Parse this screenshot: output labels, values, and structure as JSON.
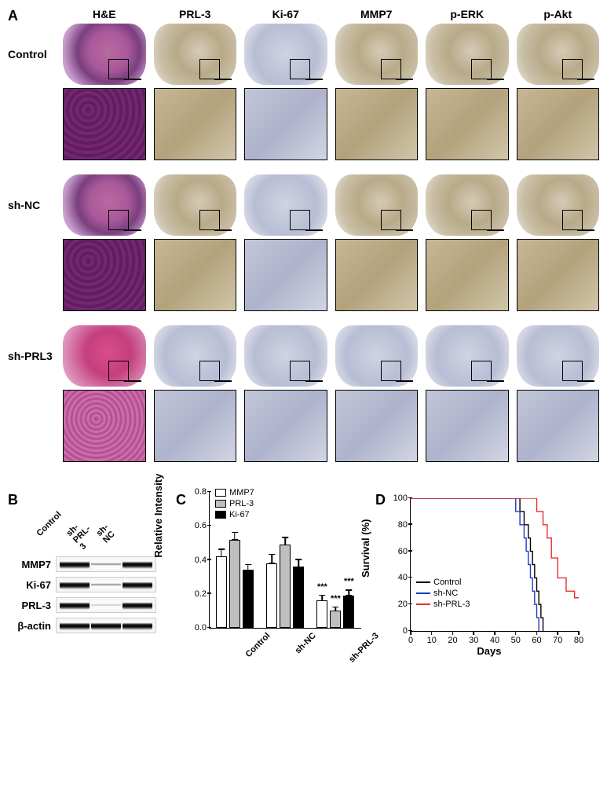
{
  "panelA": {
    "label": "A",
    "columns": [
      "H&E",
      "PRL-3",
      "Ki-67",
      "MMP7",
      "p-ERK",
      "p-Akt"
    ],
    "rows": [
      "Control",
      "sh-NC",
      "sh-PRL3"
    ],
    "brain_variants": {
      "Control": [
        "he",
        "brown",
        "blue",
        "brown",
        "brown",
        "brown"
      ],
      "sh-NC": [
        "he",
        "brown",
        "blue",
        "brown",
        "brown",
        "brown"
      ],
      "sh-PRL3": [
        "pink",
        "blue",
        "blue",
        "blue",
        "blue",
        "blue"
      ]
    },
    "zoom_variants": {
      "Control": [
        "he",
        "brown",
        "blue",
        "brown",
        "brown",
        "brown"
      ],
      "sh-NC": [
        "he",
        "brown",
        "blue",
        "brown",
        "brown",
        "brown"
      ],
      "sh-PRL3": [
        "pink",
        "blue",
        "blue",
        "blue",
        "blue",
        "blue"
      ]
    }
  },
  "panelB": {
    "label": "B",
    "lane_headers": [
      "Control",
      "sh-PRL-3",
      "sh-NC"
    ],
    "rows": [
      {
        "name": "MMP7",
        "bands": [
          "strong",
          "weak",
          "strong"
        ]
      },
      {
        "name": "Ki-67",
        "bands": [
          "strong",
          "weak",
          "strong"
        ]
      },
      {
        "name": "PRL-3",
        "bands": [
          "strong",
          "faint",
          "strong"
        ]
      },
      {
        "name": "β-actin",
        "bands": [
          "strong",
          "strong",
          "strong"
        ]
      }
    ]
  },
  "panelC": {
    "label": "C",
    "ylabel": "Relative Intensity",
    "ylim": [
      0,
      0.8
    ],
    "ytick_step": 0.2,
    "yticks": [
      "0.0",
      "0.2",
      "0.4",
      "0.6",
      "0.8"
    ],
    "legend": [
      {
        "name": "MMP7",
        "fill": "#ffffff"
      },
      {
        "name": "PRL-3",
        "fill": "#bfbfbf"
      },
      {
        "name": "Ki-67",
        "fill": "#000000"
      }
    ],
    "groups": [
      {
        "name": "Control",
        "bars": [
          {
            "v": 0.42,
            "e": 0.05
          },
          {
            "v": 0.52,
            "e": 0.05
          },
          {
            "v": 0.34,
            "e": 0.04
          }
        ]
      },
      {
        "name": "sh-NC",
        "bars": [
          {
            "v": 0.38,
            "e": 0.06
          },
          {
            "v": 0.49,
            "e": 0.05
          },
          {
            "v": 0.36,
            "e": 0.05
          }
        ]
      },
      {
        "name": "sh-PRL-3",
        "bars": [
          {
            "v": 0.16,
            "e": 0.04,
            "sig": "***"
          },
          {
            "v": 0.1,
            "e": 0.03,
            "sig": "***"
          },
          {
            "v": 0.19,
            "e": 0.04,
            "sig": "***"
          }
        ]
      }
    ]
  },
  "panelD": {
    "label": "D",
    "ylabel": "Survival (%)",
    "xlabel": "Days",
    "xlim": [
      0,
      80
    ],
    "ylim": [
      0,
      100
    ],
    "xtick_step": 10,
    "ytick_step": 20,
    "series": [
      {
        "name": "Control",
        "color": "#000000",
        "points": [
          [
            0,
            100
          ],
          [
            52,
            100
          ],
          [
            52,
            90
          ],
          [
            54,
            90
          ],
          [
            54,
            80
          ],
          [
            56,
            80
          ],
          [
            56,
            70
          ],
          [
            57,
            70
          ],
          [
            57,
            60
          ],
          [
            58,
            60
          ],
          [
            58,
            50
          ],
          [
            59,
            50
          ],
          [
            59,
            40
          ],
          [
            60,
            40
          ],
          [
            60,
            30
          ],
          [
            61,
            30
          ],
          [
            61,
            20
          ],
          [
            62,
            20
          ],
          [
            62,
            10
          ],
          [
            63,
            10
          ],
          [
            63,
            0
          ]
        ]
      },
      {
        "name": "sh-NC",
        "color": "#1f3ad1",
        "points": [
          [
            0,
            100
          ],
          [
            50,
            100
          ],
          [
            50,
            90
          ],
          [
            52,
            90
          ],
          [
            52,
            80
          ],
          [
            54,
            80
          ],
          [
            54,
            70
          ],
          [
            55,
            70
          ],
          [
            55,
            60
          ],
          [
            56,
            60
          ],
          [
            56,
            50
          ],
          [
            57,
            50
          ],
          [
            57,
            40
          ],
          [
            58,
            40
          ],
          [
            58,
            30
          ],
          [
            59,
            30
          ],
          [
            59,
            20
          ],
          [
            60,
            20
          ],
          [
            60,
            10
          ],
          [
            61,
            10
          ],
          [
            61,
            0
          ]
        ]
      },
      {
        "name": "sh-PRL-3",
        "color": "#e33030",
        "points": [
          [
            0,
            100
          ],
          [
            60,
            100
          ],
          [
            60,
            90
          ],
          [
            63,
            90
          ],
          [
            63,
            80
          ],
          [
            65,
            80
          ],
          [
            65,
            70
          ],
          [
            67,
            70
          ],
          [
            67,
            55
          ],
          [
            70,
            55
          ],
          [
            70,
            40
          ],
          [
            74,
            40
          ],
          [
            74,
            30
          ],
          [
            78,
            30
          ],
          [
            78,
            25
          ],
          [
            80,
            25
          ]
        ]
      }
    ],
    "legend_order": [
      "Control",
      "sh-NC",
      "sh-PRL-3"
    ]
  }
}
